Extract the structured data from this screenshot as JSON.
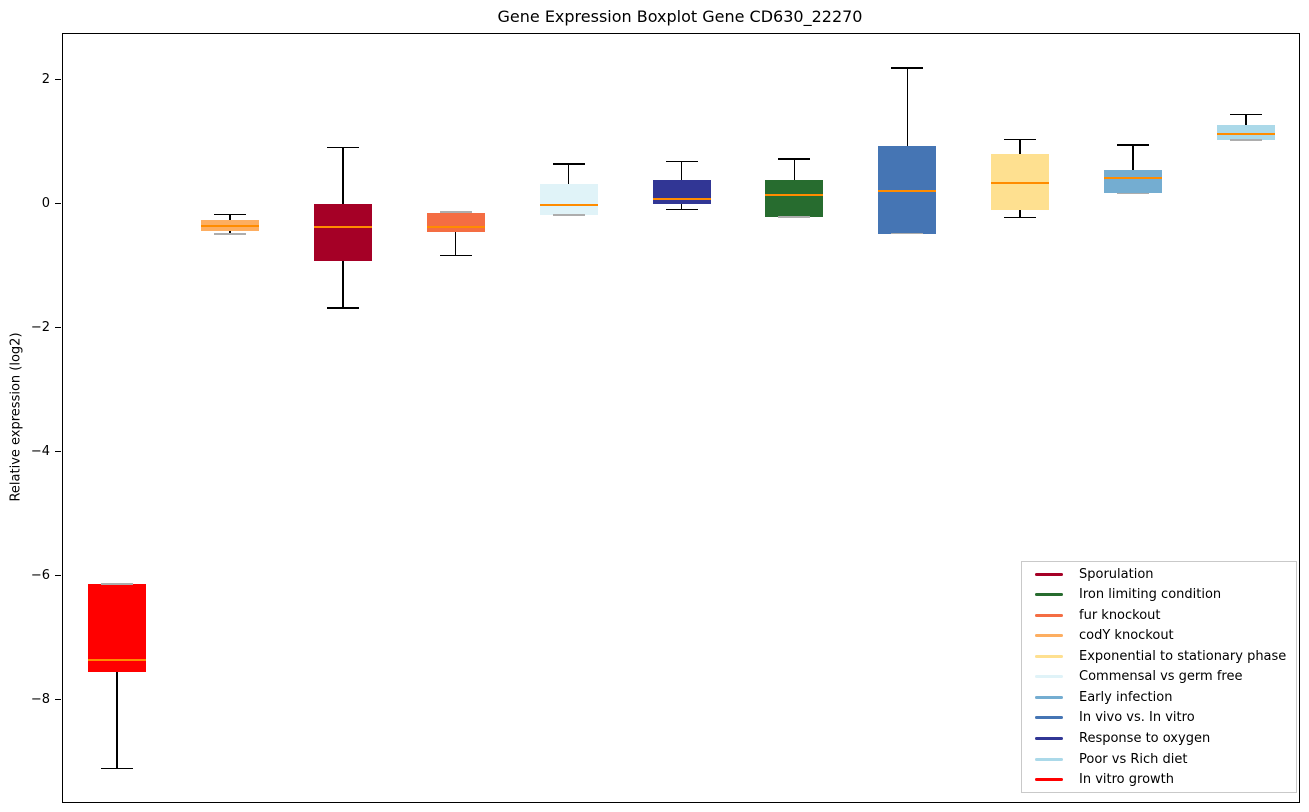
{
  "chart_data": {
    "type": "box",
    "title": "Gene Expression Boxplot Gene CD630_22270",
    "ylabel": "Relative expression (log2)",
    "xlabel": "",
    "ylim": [
      -9.64,
      2.75
    ],
    "grid": false,
    "legend_position": "lower right",
    "median_color": "#ff8c00",
    "axis_color": "#000000",
    "yticks": [
      {
        "label": "2",
        "value": 2
      },
      {
        "label": "0",
        "value": 0
      },
      {
        "label": "−2",
        "value": -2
      },
      {
        "label": "−4",
        "value": -4
      },
      {
        "label": "−6",
        "value": -6
      },
      {
        "label": "−8",
        "value": -8
      }
    ],
    "boxes": [
      {
        "name": "In vitro growth",
        "color": "#ff0000",
        "whisker_low": -9.1,
        "q1": -7.55,
        "median": -7.35,
        "q3": -6.12,
        "whisker_high": -6.12
      },
      {
        "name": "codY knockout",
        "color": "#fdae61",
        "whisker_low": -0.48,
        "q1": -0.43,
        "median": -0.35,
        "q3": -0.25,
        "whisker_high": -0.16
      },
      {
        "name": "Sporulation",
        "color": "#a50026",
        "whisker_low": -1.67,
        "q1": -0.91,
        "median": -0.36,
        "q3": 0.0,
        "whisker_high": 0.92
      },
      {
        "name": "fur knockout",
        "color": "#f46d43",
        "whisker_low": -0.82,
        "q1": -0.44,
        "median": -0.36,
        "q3": -0.14,
        "whisker_high": -0.12
      },
      {
        "name": "Commensal vs germ free",
        "color": "#e0f3f8",
        "whisker_low": -0.17,
        "q1": -0.17,
        "median": -0.01,
        "q3": 0.33,
        "whisker_high": 0.65
      },
      {
        "name": "Response to oxygen",
        "color": "#313695",
        "whisker_low": -0.08,
        "q1": 0.01,
        "median": 0.09,
        "q3": 0.4,
        "whisker_high": 0.69
      },
      {
        "name": "Iron limiting condition",
        "color": "#276c2f",
        "whisker_low": -0.2,
        "q1": -0.2,
        "median": 0.16,
        "q3": 0.39,
        "whisker_high": 0.73
      },
      {
        "name": "In vivo vs. In vitro",
        "color": "#4575b4",
        "whisker_low": -0.47,
        "q1": -0.47,
        "median": 0.21,
        "q3": 0.95,
        "whisker_high": 2.2
      },
      {
        "name": "Exponential to stationary phase",
        "color": "#fee090",
        "whisker_low": -0.21,
        "q1": -0.09,
        "median": 0.34,
        "q3": 0.81,
        "whisker_high": 1.05
      },
      {
        "name": "Early infection",
        "color": "#74add1",
        "whisker_low": 0.18,
        "q1": 0.18,
        "median": 0.42,
        "q3": 0.55,
        "whisker_high": 0.96
      },
      {
        "name": "Poor vs Rich diet",
        "color": "#abd9e9",
        "whisker_low": 1.04,
        "q1": 1.04,
        "median": 1.13,
        "q3": 1.28,
        "whisker_high": 1.45
      }
    ],
    "legend": [
      {
        "label": "Sporulation",
        "color": "#a50026"
      },
      {
        "label": "Iron limiting condition",
        "color": "#276c2f"
      },
      {
        "label": "fur knockout",
        "color": "#f46d43"
      },
      {
        "label": "codY knockout",
        "color": "#fdae61"
      },
      {
        "label": "Exponential to stationary phase",
        "color": "#fee090"
      },
      {
        "label": "Commensal vs germ free",
        "color": "#e0f3f8"
      },
      {
        "label": "Early infection",
        "color": "#74add1"
      },
      {
        "label": "In vivo vs. In vitro",
        "color": "#4575b4"
      },
      {
        "label": "Response to oxygen",
        "color": "#313695"
      },
      {
        "label": "Poor vs Rich diet",
        "color": "#abd9e9"
      },
      {
        "label": "In vitro growth",
        "color": "#ff0000"
      }
    ]
  }
}
